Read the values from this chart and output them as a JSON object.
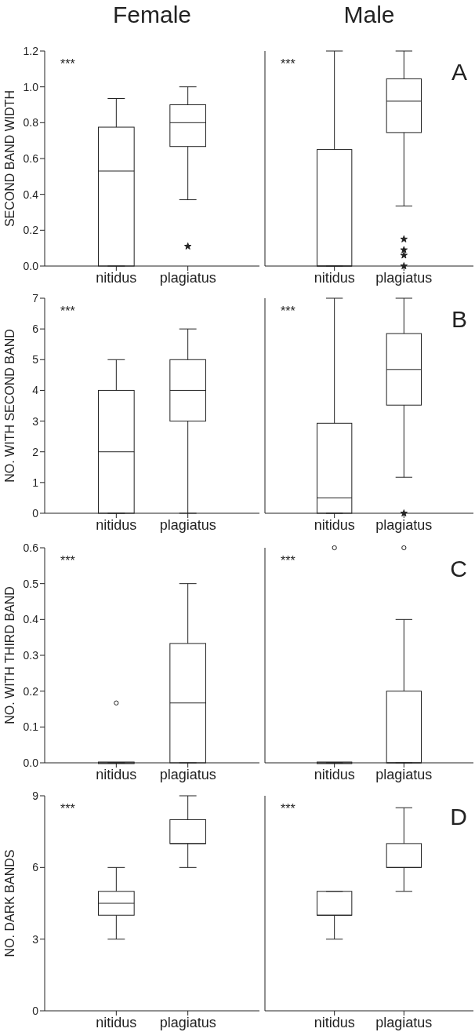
{
  "chart_data": [
    {
      "type": "box",
      "title": "Female",
      "ylabel": "SECOND BAND WIDTH",
      "categories": [
        "nitidus",
        "plagiatus"
      ],
      "marker": "star",
      "annotations": [
        "***"
      ],
      "boxes": [
        {
          "low": 0,
          "q1": 0,
          "median": 0.53,
          "q3": 0.775,
          "high": 0.935
        },
        {
          "low": 0.37,
          "q1": 0.667,
          "median": 0.8,
          "q3": 0.9,
          "high": 1.0,
          "outliers": [
            0.11
          ]
        }
      ],
      "ylim": [
        0,
        1.2
      ],
      "yticks": [
        {
          "value": 0,
          "label": "0.0"
        },
        {
          "value": 0.2,
          "label": "0.2"
        },
        {
          "value": 0.4,
          "label": "0.4"
        },
        {
          "value": 0.6,
          "label": "0.6"
        },
        {
          "value": 0.8,
          "label": "0.8"
        },
        {
          "value": 1,
          "label": "1.0"
        },
        {
          "value": 1.2,
          "label": "1.2"
        }
      ]
    },
    {
      "type": "box",
      "title": "Male",
      "categories": [
        "nitidus",
        "plagiatus"
      ],
      "marker": "star",
      "annotations": [
        "***",
        "A"
      ],
      "tick_labels": "x",
      "boxes": [
        {
          "low": 0,
          "q1": 0,
          "median": 0,
          "q3": 0.65,
          "high": 1.2
        },
        {
          "low": 0.335,
          "q1": 0.745,
          "median": 0.92,
          "q3": 1.045,
          "high": 1.2,
          "outliers": [
            0.15,
            0.09,
            0.06,
            0.0
          ]
        }
      ],
      "ylim": [
        0,
        1.2
      ],
      "yticks": [
        0,
        0.2,
        0.4,
        0.6,
        0.8,
        1,
        1.2
      ]
    },
    {
      "type": "box",
      "ylabel": "NO. WITH SECOND BAND",
      "categories": [
        "nitidus",
        "plagiatus"
      ],
      "annotations": [
        "***"
      ],
      "boxes": [
        {
          "low": 0,
          "q1": 0,
          "median": 2,
          "q3": 4,
          "high": 5
        },
        {
          "low": 0,
          "q1": 3,
          "median": 4,
          "q3": 5,
          "high": 6
        }
      ],
      "ylim": [
        0,
        7
      ],
      "yticks": [
        0,
        1,
        2,
        3,
        4,
        5,
        6,
        7
      ]
    },
    {
      "type": "box",
      "categories": [
        "nitidus",
        "plagiatus"
      ],
      "marker": "star",
      "annotations": [
        "***",
        "B"
      ],
      "tick_labels": "x",
      "boxes": [
        {
          "low": 0,
          "q1": 0,
          "median": 0.5,
          "q3": 2.93,
          "high": 7
        },
        {
          "low": 1.17,
          "q1": 3.52,
          "median": 4.68,
          "q3": 5.85,
          "high": 7,
          "outliers": [
            0
          ]
        }
      ],
      "ylim": [
        0,
        7
      ],
      "yticks": [
        0,
        1,
        2,
        3,
        4,
        5,
        6,
        7
      ]
    },
    {
      "type": "box",
      "ylabel": "NO. WITH THIRD BAND",
      "categories": [
        "nitidus",
        "plagiatus"
      ],
      "marker": "circle",
      "annotations": [
        "***"
      ],
      "boxes": [
        {
          "low": 0,
          "q1": 0,
          "median": 0,
          "q3": 0,
          "high": 0,
          "outliers": [
            0.167
          ]
        },
        {
          "low": 0,
          "q1": 0,
          "median": 0.167,
          "q3": 0.333,
          "high": 0.5
        }
      ],
      "ylim": [
        0,
        0.6
      ],
      "yticks": [
        {
          "value": 0,
          "label": "0.0"
        },
        {
          "value": 0.1,
          "label": "0.1"
        },
        {
          "value": 0.2,
          "label": "0.2"
        },
        {
          "value": 0.3,
          "label": "0.3"
        },
        {
          "value": 0.4,
          "label": "0.4"
        },
        {
          "value": 0.5,
          "label": "0.5"
        },
        {
          "value": 0.6,
          "label": "0.6"
        }
      ]
    },
    {
      "type": "box",
      "categories": [
        "nitidus",
        "plagiatus"
      ],
      "marker": "circle",
      "annotations": [
        "***",
        "C"
      ],
      "tick_labels": "x",
      "boxes": [
        {
          "low": 0,
          "q1": 0,
          "median": 0,
          "q3": 0,
          "high": 0,
          "outliers": [
            0.6
          ]
        },
        {
          "low": 0,
          "q1": 0,
          "median": 0,
          "q3": 0.2,
          "high": 0.4,
          "outliers": [
            0.6
          ]
        }
      ],
      "ylim": [
        0,
        0.6
      ],
      "yticks": [
        0,
        0.1,
        0.2,
        0.3,
        0.4,
        0.5,
        0.6
      ]
    },
    {
      "type": "box",
      "ylabel": "NO. DARK BANDS",
      "categories": [
        "nitidus",
        "plagiatus"
      ],
      "annotations": [
        "***"
      ],
      "boxes": [
        {
          "low": 3,
          "q1": 4,
          "median": 4.5,
          "q3": 5,
          "high": 6
        },
        {
          "low": 6,
          "q1": 7,
          "median": 7,
          "q3": 8,
          "high": 9
        }
      ],
      "ylim": [
        0,
        9
      ],
      "yticks": [
        0,
        3,
        6,
        9
      ]
    },
    {
      "type": "box",
      "categories": [
        "nitidus",
        "plagiatus"
      ],
      "annotations": [
        "***",
        "D"
      ],
      "tick_labels": "x",
      "boxes": [
        {
          "low": 3,
          "q1": 4,
          "median": 4,
          "q3": 5,
          "high": 5
        },
        {
          "low": 5,
          "q1": 6,
          "median": 6,
          "q3": 7,
          "high": 8.5
        }
      ],
      "ylim": [
        0,
        9
      ],
      "yticks": [
        0,
        3,
        6,
        9
      ]
    }
  ]
}
